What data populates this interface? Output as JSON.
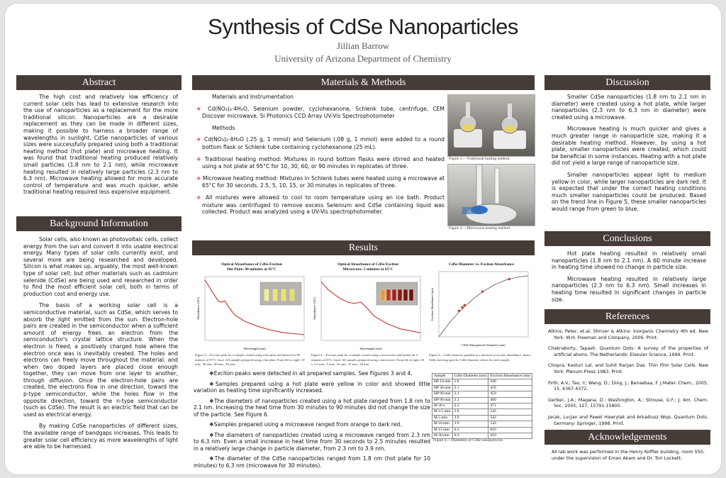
{
  "header": {
    "title": "Synthesis of CdSe Nanoparticles",
    "author": "Jillian Barrow",
    "affiliation": "University of Arizona Department of Chemistry"
  },
  "abstract": {
    "heading": "Abstract",
    "text": "The high cost and relatively low efficiency of current solar cells has lead to extensive research into the use of nanoparticles as a replacement for the more traditional silicon. Nanoparticles are a desirable replacement as they can be made in different sizes, making it possible to harness a broader range of wavelengths in sunlight. CdSe nanoparticles of various sizes were successfully prepared using both a traditional heating method (hot plate) and microwave heating. It was found that traditional heating produced relatively small particles (1.8 nm to 2.1 nm), while microwave heating resulted in relatively large particles (2.3 nm to 6.3 nm). Microwave heating allowed for more accurate control of temperature and was much quicker, while traditional heating required less expensive equipment."
  },
  "background": {
    "heading": "Background Information",
    "paragraphs": [
      "Solar cells, also known as photovoltaic cells, collect energy from the sun and convert it into usable electrical energy. Many types of solar cells currently exist, and several more are being researched and developed. Silicon is what makes up, arguably, the most well-known type of solar cell; but other materials such as cadmium selenide (CdSe) are being used and researched in order to find the most efficient solar cell, both in terms of production cost and energy use.",
      "The basis of a working solar cell is a semiconductive material, such as CdSe, which serves to absorb the light emitted from the sun. Electron-hole pairs are created in the semiconductor when a sufficient amount of energy frees an electron from the semiconductor's crystal lattice structure. When the electron is freed, a positively charged hole where the electron once was is inevitably created. The holes and electrons can freely move throughout the material, and when two doped layers are placed close enough together, they can move from one layer to another, through diffusion. Once the electron-hole pairs are created, the electrons flow in one direction, toward the p-type semiconductor, while the holes flow in the opposite direction, toward the n-type semiconductor (such as CdSe). The result is an electric field that can be used as electrical energy.",
      "By making CdSe nanoparticles of different sizes, the available range of bandgaps increases. This leads to greater solar cell efficiency as more wavelengths of light are able to be harnessed."
    ]
  },
  "methods": {
    "heading": "Materials & Methods",
    "materials_title": "Materials and Instrumentation",
    "materials_item": "Cd(NO₃)₂·4H₂O, Selenium powder, cyclohexanone, Schlenk tube, centrifuge, CEM Discover microwave, Si Photonics CCD Array UV-Vis Spectrophotometer",
    "methods_title": "Methods",
    "steps": [
      "Cd(NO₃)₂·4H₂O (.25 g, 1 mmol) and Selenium (.08 g, 1 mmol) were added to a round bottom flask or Schlenk tube containing cyclohexanone (25 mL).",
      "Traditional heating method: Mixtures in round bottom flasks were stirred and heated using a hot plate at 95°C for 10, 30, 60, or 90 minutes in replicates of three.",
      "Microwave heating method: Mixtures in Schlenk tubes were heated using a microwave at 65°C for 30 seconds, 2.5, 5, 10, 15, or 30 minutes in replicates of three.",
      "All mixtures were allowed to cool to room temperature using an ice bath. Product mixture was centrifuged to remove excess Selenium and CdSe containing liquid was collected. Product was analyzed using a UV-Vis spectrophotometer."
    ],
    "fig1_caption": "Figure 1.—Traditional heating method.",
    "fig2_caption": "Figure 2.—Microwave heating method"
  },
  "results": {
    "heading": "Results",
    "chart_data": [
      {
        "type": "line",
        "title": "Optical Absorbance of CdSe Exciton",
        "subtitle": "Hot Plate: 90 minutes at 95°C",
        "xlabel": "Wavelength (nm)",
        "ylabel": "Absorbance (AU)",
        "x": [
          400,
          420,
          440,
          450,
          460,
          475,
          490,
          520,
          560,
          600,
          640,
          680,
          700
        ],
        "y": [
          0.95,
          0.78,
          0.62,
          0.6,
          0.62,
          0.5,
          0.4,
          0.3,
          0.22,
          0.16,
          0.12,
          0.1,
          0.09
        ],
        "xlim": [
          400,
          700
        ],
        "ylim": [
          0,
          1
        ],
        "caption": "Figure 3.—Exciton peak for a sample created using a hot plate and heated for 90 minutes at 95°C. Inset: All samples prepared using a hot plate. From left to right: 10 min., 30 min., 60 min., 90 min."
      },
      {
        "type": "line",
        "title": "Optical Absorbance of CdSe Exciton",
        "subtitle": "Microwave: 5 minutes at 65°C",
        "xlabel": "Wavelength (nm)",
        "ylabel": "Absorbance (AU)",
        "x": [
          400,
          420,
          440,
          460,
          480,
          500,
          520,
          540,
          560,
          600,
          640,
          680,
          700
        ],
        "y": [
          0.92,
          0.8,
          0.72,
          0.65,
          0.6,
          0.58,
          0.6,
          0.5,
          0.38,
          0.26,
          0.18,
          0.14,
          0.12
        ],
        "xlim": [
          400,
          700
        ],
        "ylim": [
          0,
          1
        ],
        "caption": "Figure 4.—Exciton peak for a sample created using a microwave and heated for 5 minutes at 65°C. Inset: All samples prepared using a microwave. From left to right: 30 s, 2.5 min., 5 min., 10 min., 15 min., 30 min."
      },
      {
        "type": "scatter",
        "title": "CdSe Diameter vs. Exciton Absorbance",
        "xlabel": "CdSe Nanoparticle Diameter (nm)",
        "ylabel": "Exciton Absorbance (nm)",
        "points": [
          [
            1.8,
            440
          ],
          [
            2.1,
            459
          ],
          [
            2.1,
            460
          ],
          [
            2.3,
            471
          ],
          [
            3.9,
            543
          ],
          [
            6.3,
            610
          ]
        ],
        "fit": [
          [
            0,
            300
          ],
          [
            1,
            380
          ],
          [
            2,
            445
          ],
          [
            3,
            500
          ],
          [
            4,
            545
          ],
          [
            5,
            580
          ],
          [
            6,
            605
          ],
          [
            7,
            620
          ],
          [
            8,
            628
          ]
        ],
        "xlim": [
          0,
          8
        ],
        "ylim": [
          300,
          650
        ],
        "caption": "Figure 5.—CdSe diameter graphed as a function of exciton absorbance. Insert: Table showing specific CdSe diameter values for each sample."
      }
    ],
    "bullets": [
      "Exciton peaks were detected in all prepared samples. See Figures 3 and 4.",
      "Samples prepared using a hot plate were yellow in color and showed little variation as heating time significantly increased.",
      "The diameters of nanoparticles created using a hot plate ranged from 1.8 nm to 2.1 nm. Increasing the heat time from 30 minutes to 90 minutes did not change the size of the particle. See Figure 6.",
      "Samples prepared using a microwave ranged from orange to dark red.",
      "The diameters of nanoparticles created using a microwave ranged from 2.3 nm to 6.3 nm. Even a small increase in heat time from 30 seconds to 2.5 minutes resulted in a relatively large change in particle diameter, from 2.3 nm to 3.9 nm.",
      "The diameter of the CdSe nanoparticles ranged from 1.8 nm (hot plate for 10 minutes) to 6.3 nm (microwave for 30 minutes)."
    ],
    "table": {
      "headers": [
        "Sample",
        "CdSe Diameter (nm)",
        "Exciton Absorbance (nm)"
      ],
      "rows": [
        [
          "HP 10 min",
          "1.8",
          "440"
        ],
        [
          "HP 30 min",
          "2.1",
          "459"
        ],
        [
          "HP 60 min",
          "2.1",
          "459"
        ],
        [
          "HP 90 min",
          "2.1",
          "460"
        ],
        [
          "M 30 s",
          "2.3",
          "471"
        ],
        [
          "M 2.5 min",
          "3.9",
          "543"
        ],
        [
          "M 5 min",
          "3.9",
          "543"
        ],
        [
          "M 10 min",
          "3.9",
          "543"
        ],
        [
          "M 15 min",
          "6.3",
          "610"
        ],
        [
          "M 30 min",
          "6.3",
          "610"
        ]
      ],
      "caption": "Figure 6.—Diameters of CdSe nanoparticles"
    }
  },
  "discussion": {
    "heading": "Discussion",
    "paragraphs": [
      "Smaller CdSe nanoparticles (1.8 nm to 2.1 nm in diameter) were created using a hot plate, while larger nanoparticles (2.3 nm to 6.3 nm in diameter) were created using a microwave.",
      "Microwave heating is much quicker and gives a much greater range in nanoparticle size, making it a desirable heating method. However, by using a hot plate, smaller nanoparticles were created, which could be beneficial in some instances. Heating with a hot plate did not yield a large range of nanoparticle size.",
      "Smaller nanoparticles appear light to medium yellow in color, while larger nanoparticles are dark red. It is expected that under the correct heating conditions much smaller nanoparticles could be produced. Based on the trend line in Figure 5, these smaller nanoparticles would range from green to blue."
    ]
  },
  "conclusions": {
    "heading": "Conclusions",
    "paragraphs": [
      "Hot plate heating resulted in relatively small nanoparticles (1.8 nm to 2.1 nm). A 60 minute increase in heating time showed no change in particle size.",
      "Microwave heating resulted in relatively large nanoparticles (2.3 nm to 6.3 nm). Small increases in heating time resulted in significant changes in particle size."
    ]
  },
  "references": {
    "heading": "References",
    "items": [
      "Atkins, Peter, et.al. Shriver & Atkins: Inorganic Chemistry 4th ed. New York: W.H. Freeman and Company, 2006. Print.",
      "Chakraborty, Tapash. Quantum Dots: A survey of the properties of artificial atoms. The Netherlands: Elsevier Science, 1999. Print.",
      "Chopra, Kasturi Lal, and Suhit Ranjan Das. Thin Film Solar Cells. New York: Plenum Press 1983. Print.",
      "Firth, A.V.; Tao, Y.; Wang, D.; Ding, J.; Bensebaa, F. J.Mater. Chem., 2005, 15, 4367-4372.",
      "Gerbec, J.A.; Magana, D.; Washington, A.; Strouse, G.F.; J. Am. Chem. Soc. 2005, 127, 15791-15800.",
      "Jacak, Lucjan and Pawel Hawrylak and Arkadiusz Wojs. Quantum Dots. Germany: Springer, 1998. Print."
    ]
  },
  "acknowledgements": {
    "heading": "Acknowledgements",
    "text": "All lab work was performed in the Henry Koffler building, room 550, under the supervision of Eman Akam and Dr. Tori Lockett."
  },
  "colors": {
    "header_bar": "#453b37",
    "curve": "#c0392b",
    "bullet": "#d9534f"
  }
}
